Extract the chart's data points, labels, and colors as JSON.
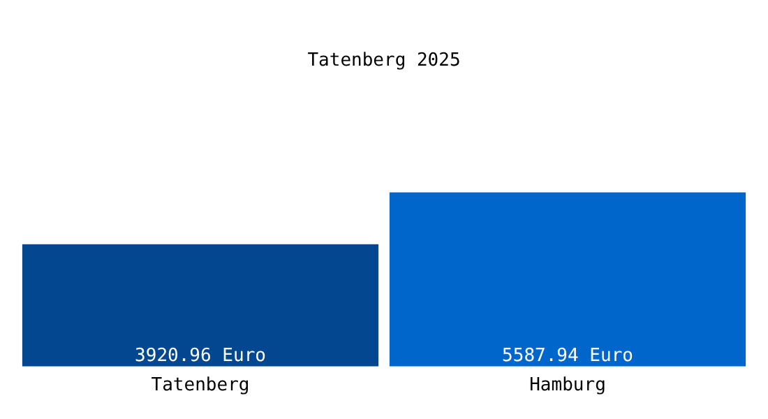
{
  "chart_data": {
    "type": "bar",
    "title": "Tatenberg 2025",
    "categories": [
      "Tatenberg",
      "Hamburg"
    ],
    "values": [
      3920.96,
      5587.94
    ],
    "value_labels": [
      "3920.96 Euro",
      "5587.94 Euro"
    ],
    "colors": [
      "#02478f",
      "#0066cc"
    ],
    "grid": false,
    "legend": false
  }
}
